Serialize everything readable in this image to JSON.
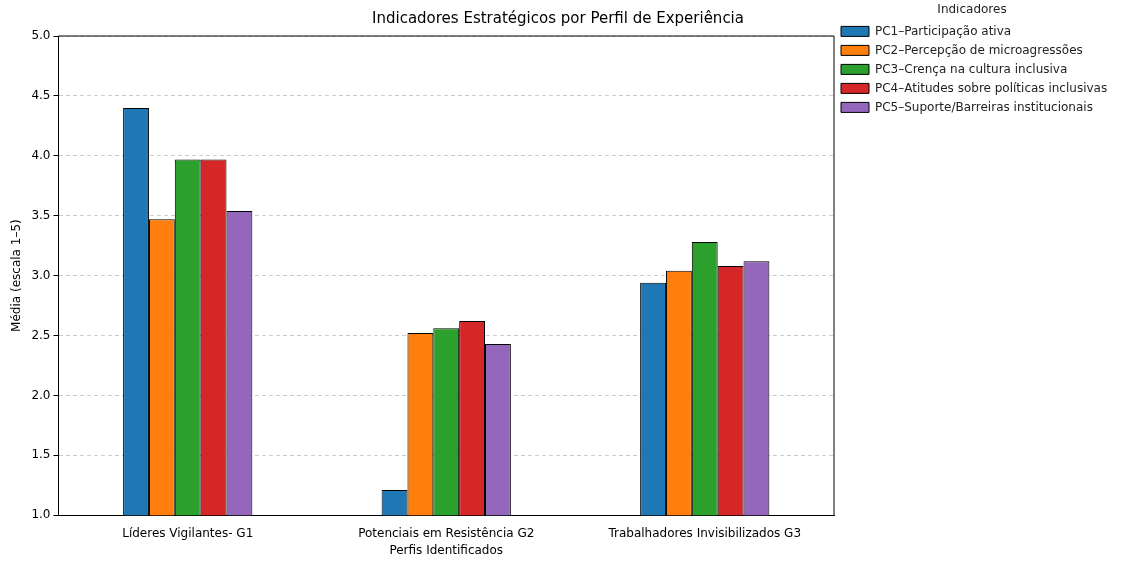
{
  "chart_data": {
    "type": "bar",
    "title": "Indicadores Estratégicos por Perfil de Experiência",
    "xlabel": "Perfis Identificados",
    "ylabel": "Média (escala 1–5)",
    "legend_title": "Indicadores",
    "legend": "top right",
    "grid": "y",
    "categories": [
      "Líderes Vigilantes- G1",
      "Potenciais em Resistência G2",
      "Trabalhadores Invisibilizados G3"
    ],
    "ylim": [
      1,
      5
    ],
    "yticks": [
      {
        "value": 1,
        "label": "1.0"
      },
      {
        "value": 1.5,
        "label": "1.5"
      },
      {
        "value": 2,
        "label": "2.0"
      },
      {
        "value": 2.5,
        "label": "2.5"
      },
      {
        "value": 3,
        "label": "3.0"
      },
      {
        "value": 3.5,
        "label": "3.5"
      },
      {
        "value": 4,
        "label": "4.0"
      },
      {
        "value": 4.5,
        "label": "4.5"
      },
      {
        "value": 5,
        "label": "5.0"
      }
    ],
    "series": [
      {
        "name": "PC1–Participação ativa",
        "color": "#1f77b4",
        "values": [
          4.4,
          1.21,
          2.94
        ]
      },
      {
        "name": "PC2–Percepção de microagressões",
        "color": "#ff7f0e",
        "values": [
          3.47,
          2.52,
          3.04
        ]
      },
      {
        "name": "PC3–Crença na cultura inclusiva",
        "color": "#2ca02c",
        "values": [
          3.97,
          2.56,
          3.28
        ]
      },
      {
        "name": "PC4–Atitudes sobre políticas inclusivas",
        "color": "#d62728",
        "values": [
          3.97,
          2.62,
          3.08
        ]
      },
      {
        "name": "PC5–Suporte/Barreiras institucionais",
        "color": "#9467bd",
        "values": [
          3.54,
          2.43,
          3.12
        ]
      }
    ]
  }
}
